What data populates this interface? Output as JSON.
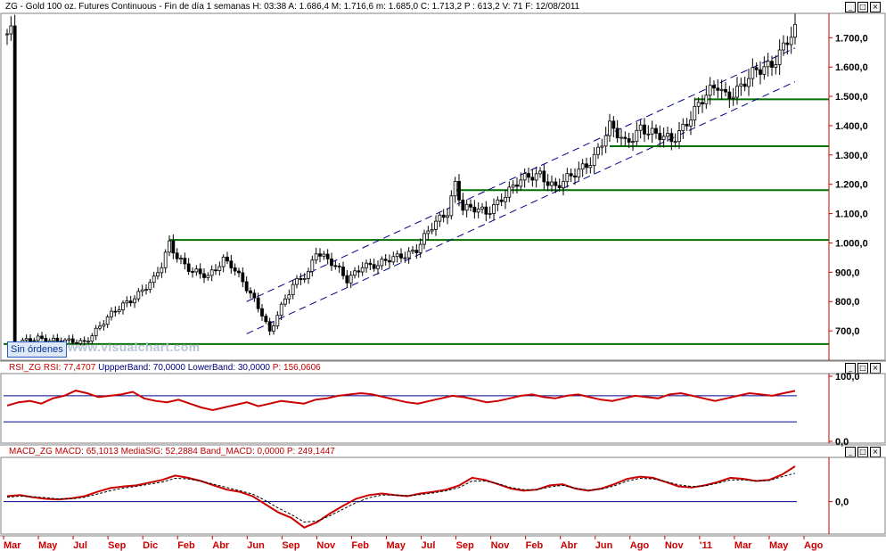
{
  "main_header": {
    "symbol": "ZG - Gold 100 oz. Futures Continuous - Fin de día 1 semanas",
    "h": "H: 03:38",
    "a": "A: 1.686,4",
    "m": "M: 1.716,6",
    "mn": "m: 1.685,0",
    "c": "C: 1.713,2",
    "p": "P : 613,2",
    "v": "V: 71",
    "f": "F: 12/08/2011"
  },
  "rsi_header": {
    "name": "RSI_ZG",
    "rsi": "RSI: 77,4707",
    "upper": "UppperBand: 70,0000",
    "lower": "LowerBand: 30,0000",
    "p": "P: 156,0606"
  },
  "macd_header": {
    "name": "MACD_ZG",
    "macd": "MACD: 65,1013",
    "sig": "MediaSIG: 52,2884",
    "band": "Band_MACD: 0,0000",
    "p": "P: 249,1447"
  },
  "status": {
    "orders_label": "Sin órdenes"
  },
  "watermark": "www.visualchart.com",
  "window_buttons": {
    "minimize": "_",
    "restore": "□",
    "close": "×"
  },
  "colors": {
    "accent_red": "#cc0000",
    "candle": "#000000",
    "support_line": "#007000",
    "channel_line": "#00008b",
    "rsi_line": "#cc0000",
    "band_line": "#00008b",
    "macd_line": "#cc0000",
    "signal_line": "#000000"
  },
  "chart_data": [
    {
      "type": "candlestick",
      "title": "ZG - Gold 100 oz. Futures Continuous - Fin de día 1 semanas",
      "y_tick_labels": [
        "1.700,0",
        "1.600,0",
        "1.500,0",
        "1.400,0",
        "1.300,0",
        "1.200,0",
        "1.100,0",
        "1.000,0",
        "900,0",
        "800,0",
        "700,0"
      ],
      "y_ticks": [
        1700,
        1600,
        1500,
        1400,
        1300,
        1200,
        1100,
        1000,
        900,
        800,
        700
      ],
      "ylim": [
        600,
        1780
      ],
      "x_tick_labels": [
        "Mar",
        "May",
        "Jul",
        "Sep",
        "Dic",
        "Feb",
        "Abr",
        "Jun",
        "Sep",
        "Nov",
        "Feb",
        "May",
        "Jul",
        "Sep",
        "Nov",
        "Feb",
        "Abr",
        "Jun",
        "Ago",
        "Nov",
        "'11",
        "Mar",
        "May",
        "Ago"
      ],
      "price_path": [
        [
          2,
          650
        ],
        [
          8,
          680
        ],
        [
          14,
          660
        ],
        [
          20,
          665
        ],
        [
          26,
          740
        ],
        [
          30,
          790
        ],
        [
          34,
          830
        ],
        [
          38,
          870
        ],
        [
          40,
          920
        ],
        [
          42,
          1000
        ],
        [
          44,
          960
        ],
        [
          48,
          900
        ],
        [
          52,
          880
        ],
        [
          56,
          950
        ],
        [
          58,
          930
        ],
        [
          62,
          840
        ],
        [
          66,
          760
        ],
        [
          68,
          700
        ],
        [
          70,
          760
        ],
        [
          74,
          850
        ],
        [
          78,
          900
        ],
        [
          80,
          980
        ],
        [
          84,
          930
        ],
        [
          88,
          870
        ],
        [
          92,
          930
        ],
        [
          96,
          920
        ],
        [
          102,
          960
        ],
        [
          106,
          980
        ],
        [
          110,
          1050
        ],
        [
          114,
          1110
        ],
        [
          116,
          1210
        ],
        [
          118,
          1120
        ],
        [
          124,
          1100
        ],
        [
          128,
          1160
        ],
        [
          132,
          1200
        ],
        [
          138,
          1240
        ],
        [
          142,
          1190
        ],
        [
          146,
          1220
        ],
        [
          152,
          1300
        ],
        [
          156,
          1390
        ],
        [
          160,
          1340
        ],
        [
          164,
          1400
        ],
        [
          168,
          1360
        ],
        [
          172,
          1350
        ],
        [
          176,
          1420
        ],
        [
          180,
          1480
        ],
        [
          184,
          1540
        ],
        [
          186,
          1510
        ],
        [
          190,
          1530
        ],
        [
          194,
          1580
        ],
        [
          198,
          1620
        ],
        [
          202,
          1690
        ],
        [
          204,
          1713
        ]
      ],
      "support_levels": [
        1490,
        1330,
        1180,
        1010,
        655
      ],
      "channel_upper": [
        [
          62,
          800
        ],
        [
          204,
          1665
        ]
      ],
      "channel_lower": [
        [
          62,
          690
        ],
        [
          204,
          1550
        ]
      ]
    },
    {
      "type": "line",
      "title": "RSI_ZG",
      "y_tick_labels": [
        "100,0",
        "0,0"
      ],
      "ylim": [
        0,
        100
      ],
      "bands": [
        70,
        30
      ],
      "series": [
        {
          "name": "RSI",
          "values": [
            55,
            60,
            62,
            58,
            66,
            70,
            78,
            74,
            68,
            70,
            72,
            76,
            66,
            62,
            60,
            64,
            58,
            52,
            48,
            52,
            56,
            60,
            54,
            58,
            62,
            60,
            58,
            64,
            66,
            70,
            72,
            74,
            72,
            68,
            64,
            60,
            58,
            62,
            66,
            70,
            68,
            64,
            60,
            62,
            66,
            70,
            72,
            68,
            66,
            70,
            72,
            68,
            64,
            62,
            66,
            70,
            68,
            66,
            72,
            74,
            70,
            66,
            62,
            66,
            70,
            74,
            72,
            70,
            74,
            77.47
          ]
        }
      ]
    },
    {
      "type": "line",
      "title": "MACD_ZG",
      "y_tick_labels": [
        "0,0"
      ],
      "ylim": [
        -60,
        80
      ],
      "series": [
        {
          "name": "MACD",
          "values": [
            10,
            12,
            8,
            5,
            4,
            6,
            10,
            18,
            25,
            28,
            30,
            35,
            40,
            48,
            44,
            38,
            30,
            22,
            18,
            10,
            -5,
            -20,
            -30,
            -48,
            -38,
            -22,
            -8,
            5,
            12,
            15,
            12,
            10,
            15,
            18,
            22,
            30,
            44,
            40,
            32,
            24,
            20,
            22,
            30,
            32,
            24,
            20,
            24,
            32,
            42,
            46,
            44,
            36,
            28,
            26,
            30,
            36,
            44,
            42,
            38,
            40,
            50,
            65.1
          ]
        },
        {
          "name": "MediaSIG",
          "values": [
            8,
            10,
            9,
            7,
            5,
            5,
            8,
            14,
            20,
            25,
            28,
            32,
            36,
            43,
            42,
            38,
            32,
            26,
            20,
            14,
            2,
            -12,
            -24,
            -38,
            -36,
            -26,
            -14,
            -2,
            7,
            12,
            12,
            11,
            13,
            16,
            20,
            26,
            38,
            38,
            33,
            26,
            22,
            22,
            27,
            30,
            25,
            21,
            23,
            29,
            38,
            43,
            42,
            37,
            31,
            28,
            29,
            34,
            40,
            40,
            38,
            39,
            46,
            52.29
          ]
        }
      ]
    }
  ]
}
